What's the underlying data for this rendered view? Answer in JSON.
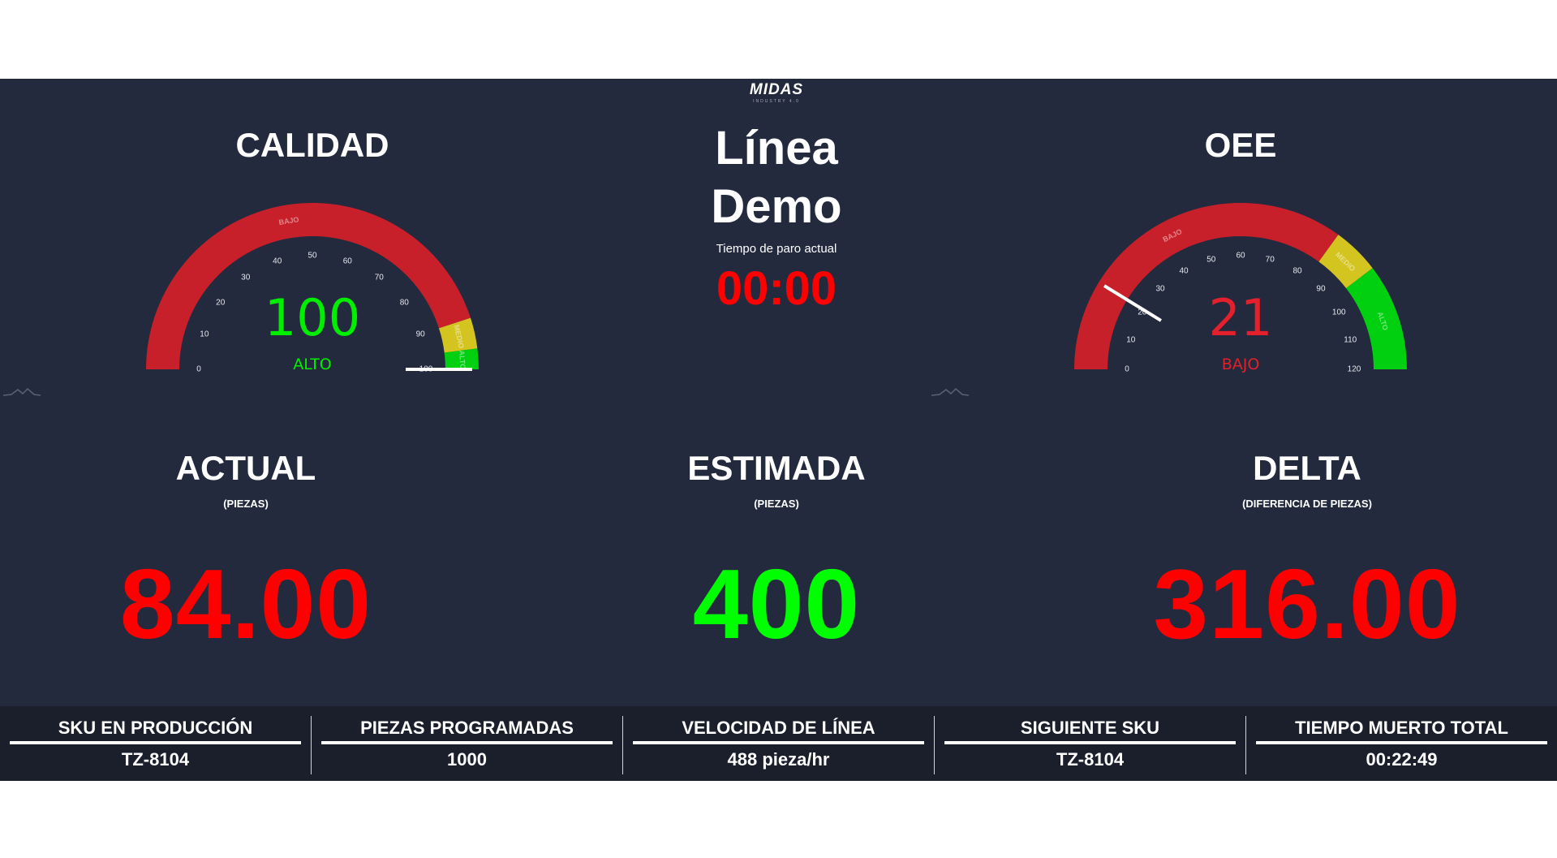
{
  "logo": {
    "name": "MIDAS",
    "tagline": "INDUSTRY 4.0"
  },
  "center": {
    "line1": "Línea",
    "line2": "Demo",
    "downtime_label": "Tiempo de paro actual",
    "downtime_value": "00:00"
  },
  "gauges": [
    {
      "id": "calidad",
      "title": "CALIDAD",
      "value": 100,
      "value_text": "100",
      "status": "ALTO",
      "value_color": "#00ee00",
      "min": 0,
      "max": 100,
      "ticks": [
        0,
        10,
        20,
        30,
        40,
        50,
        60,
        70,
        80,
        90,
        100
      ],
      "bands": [
        {
          "from": 0,
          "to": 90,
          "color": "#c8202b",
          "label": "BAJO"
        },
        {
          "from": 90,
          "to": 96,
          "color": "#d4c420",
          "label": "MEDIO"
        },
        {
          "from": 96,
          "to": 100,
          "color": "#00d010",
          "label": "ALTO"
        }
      ]
    },
    {
      "id": "oee",
      "title": "OEE",
      "value": 21,
      "value_text": "21",
      "status": "BAJO",
      "value_color": "#e3202b",
      "min": 0,
      "max": 120,
      "ticks": [
        0,
        10,
        20,
        30,
        40,
        50,
        60,
        70,
        80,
        90,
        100,
        110,
        120
      ],
      "bands": [
        {
          "from": 0,
          "to": 84,
          "color": "#c8202b",
          "label": "BAJO"
        },
        {
          "from": 84,
          "to": 95,
          "color": "#d4c420",
          "label": "MEDIO"
        },
        {
          "from": 95,
          "to": 120,
          "color": "#00d010",
          "label": "ALTO"
        }
      ]
    }
  ],
  "kpis": [
    {
      "title": "ACTUAL",
      "subtitle": "(PIEZAS)",
      "value": "84.00",
      "color": "#ff0000"
    },
    {
      "title": "ESTIMADA",
      "subtitle": "(PIEZAS)",
      "value": "400",
      "color": "#00ff00"
    },
    {
      "title": "DELTA",
      "subtitle": "(DIFERENCIA DE PIEZAS)",
      "value": "316.00",
      "color": "#ff0000"
    }
  ],
  "footer": [
    {
      "label": "SKU EN PRODUCCIÓN",
      "value": "TZ-8104"
    },
    {
      "label": "PIEZAS PROGRAMADAS",
      "value": "1000"
    },
    {
      "label": "VELOCIDAD DE LÍNEA",
      "value": "488 pieza/hr"
    },
    {
      "label": "SIGUIENTE SKU",
      "value": "TZ-8104"
    },
    {
      "label": "TIEMPO MUERTO TOTAL",
      "value": "00:22:49"
    }
  ],
  "colors": {
    "background": "#232a3d",
    "footer": "#1b1f2c",
    "downtime": "#ff0000"
  }
}
